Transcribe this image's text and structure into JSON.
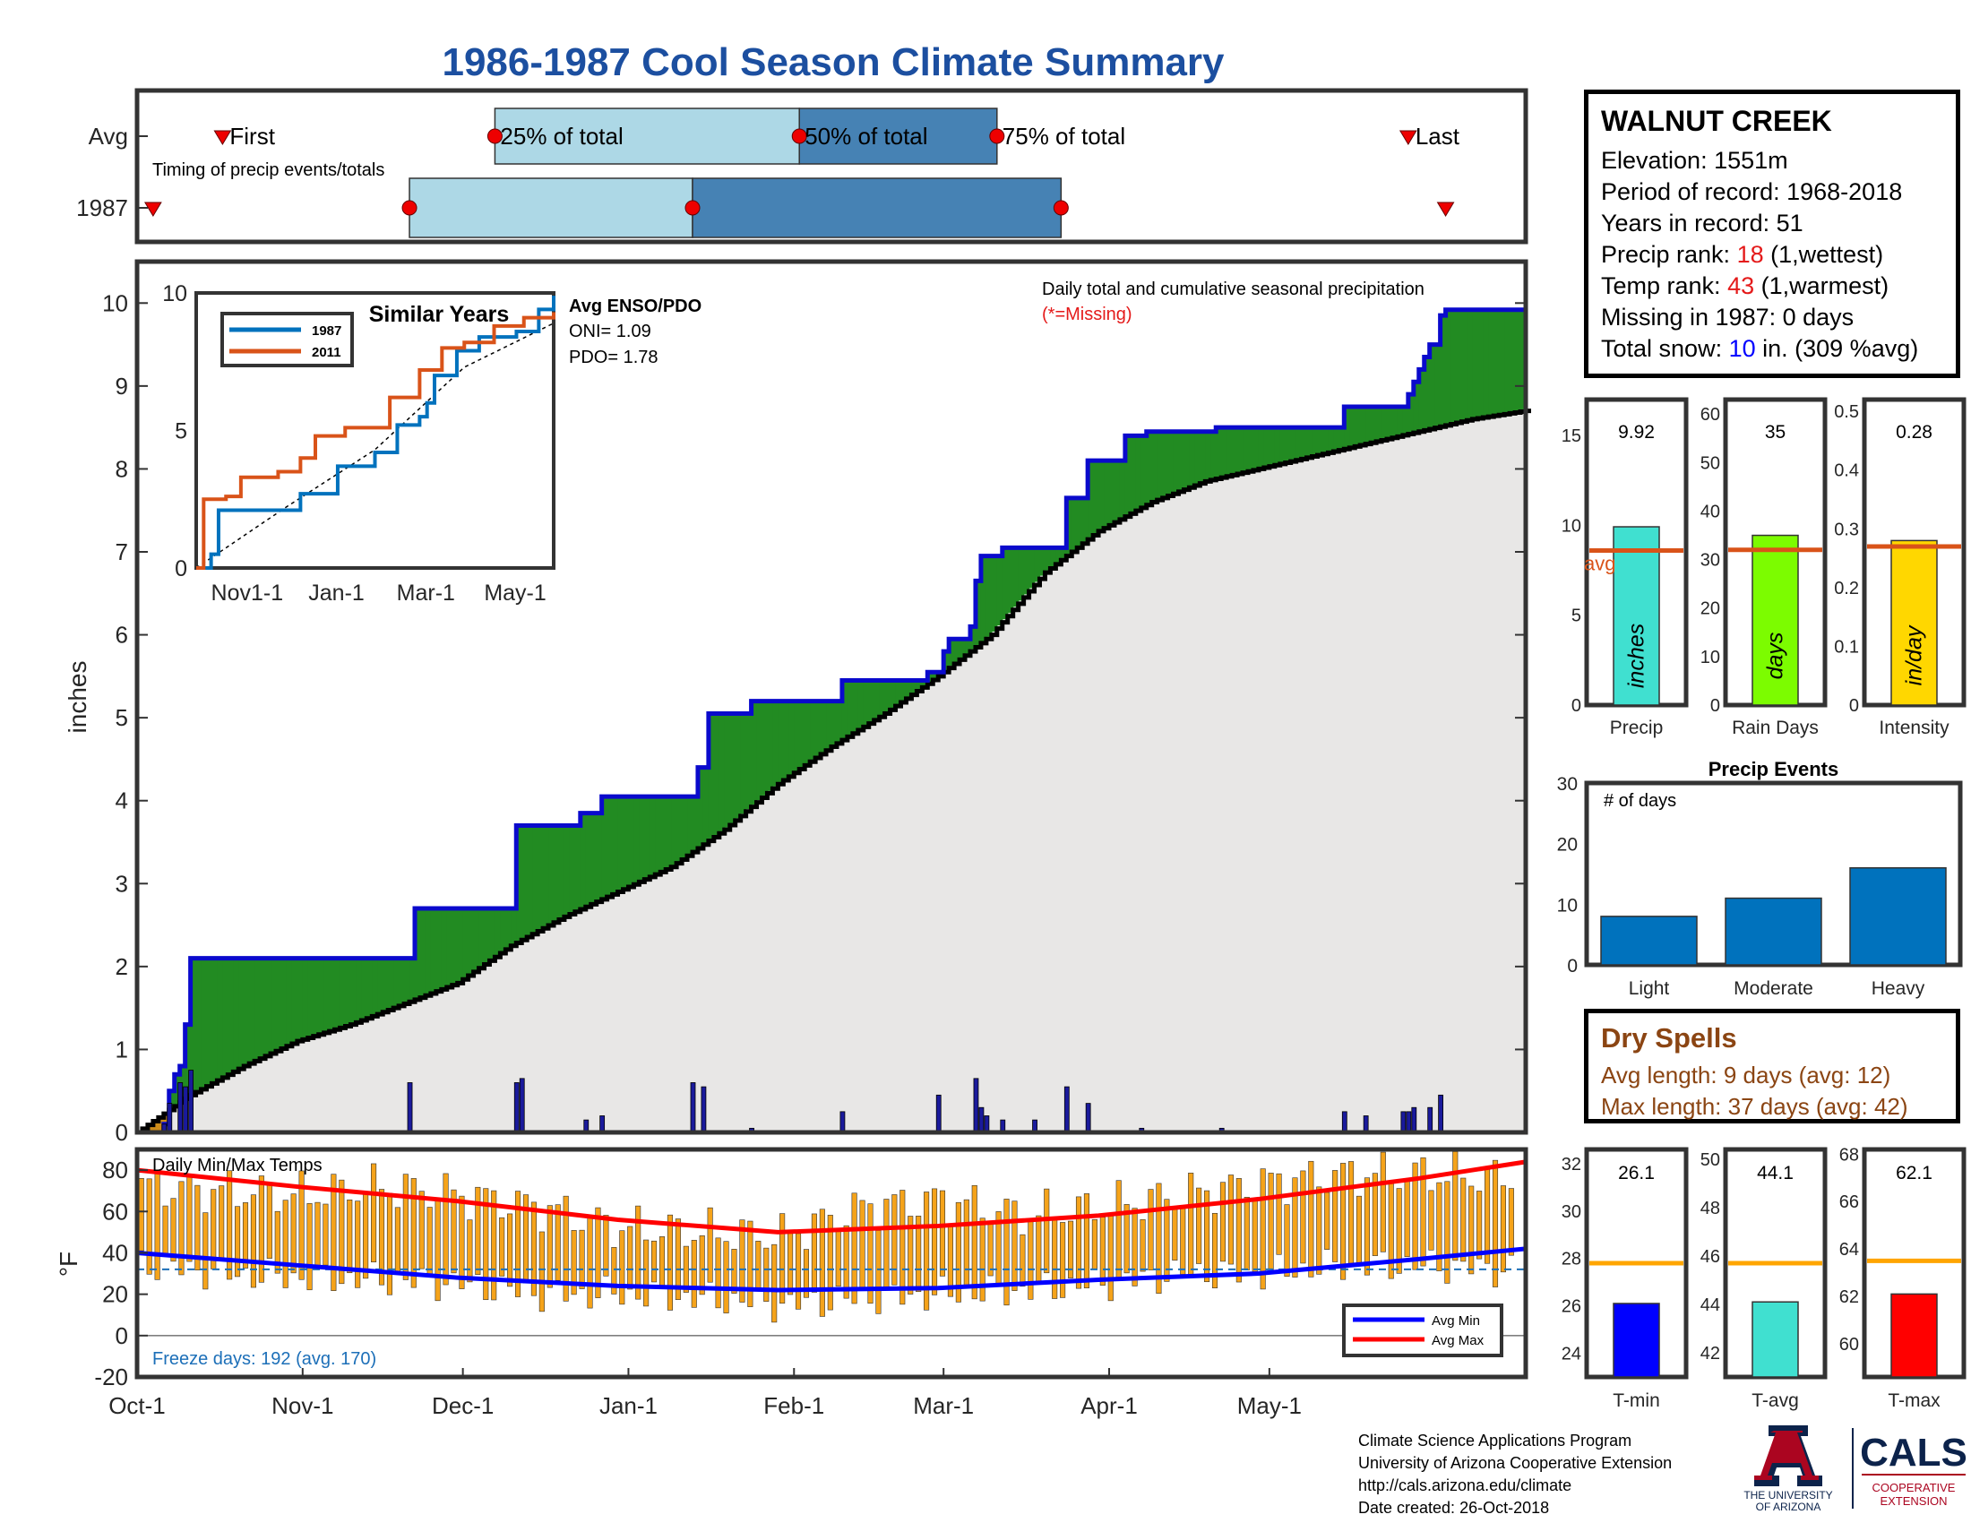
{
  "title": "1986-1987 Cool Season Climate Summary",
  "station": {
    "name": "WALNUT CREEK",
    "elevation": "Elevation: 1551m",
    "period": "Period of record: 1968-2018",
    "years": "Years in record: 51",
    "precip_rank_label": "Precip rank: ",
    "precip_rank": "18",
    "precip_rank_note": " (1,wettest)",
    "temp_rank_label": "Temp rank: ",
    "temp_rank": "43",
    "temp_rank_note": " (1,warmest)",
    "missing": "Missing in 1987: 0 days",
    "snow_label": "Total snow: ",
    "snow_value": "10",
    "snow_note": " in. (309 %avg)"
  },
  "dry_spells": {
    "title": "Dry Spells",
    "avg": "Avg length: 9 days (avg: 12)",
    "max": "Max length: 37 days (avg: 42)"
  },
  "credits": {
    "line1": "Climate Science Applications Program",
    "line2": "University of Arizona Cooperative Extension",
    "line3": "http://cals.arizona.edu/climate",
    "line4": " Date created: 26-Oct-2018"
  },
  "logos": {
    "ua_line1": "THE UNIVERSITY",
    "ua_line2": "OF ARIZONA",
    "cals": "CALS",
    "cals_sub1": "COOPERATIVE",
    "cals_sub2": "EXTENSION"
  },
  "colors": {
    "title": "#1c4fa0",
    "season_total": "#0a0acc",
    "above_avg": "#228b22",
    "below_avg": "#cd8c1a",
    "avg_fill": "#e8e7e6",
    "daily_bar": "#1a1a9c",
    "temp_bar": "#f5a31a",
    "avg_min": "#0000ff",
    "avg_max": "#ff0000",
    "box_light": "#add8e6",
    "box_dark": "#4682b4",
    "inset_1987": "#0072bd",
    "inset_2011": "#d95319"
  },
  "month_ticks": [
    "Oct-1",
    "Nov-1",
    "Dec-1",
    "Jan-1",
    "Feb-1",
    "Mar-1",
    "Apr-1",
    "May-1"
  ],
  "chart_data": [
    {
      "id": "timing",
      "type": "box",
      "title": "Timing of precip events/totals",
      "rows": [
        {
          "name": "Avg",
          "first_day": 16,
          "q25_day": 67,
          "q50_day": 124,
          "q75_day": 161,
          "last_day": 238
        },
        {
          "name": "1987",
          "first_day": 3,
          "q25_day": 51,
          "q50_day": 104,
          "q75_day": 173,
          "last_day": 245
        }
      ],
      "labels": {
        "first": "First",
        "q25": "25% of total",
        "q50": "50% of total",
        "q75": "75% of total",
        "last": "Last"
      }
    },
    {
      "id": "cumulative",
      "type": "area",
      "title": "Daily total and cumulative seasonal precipitation",
      "subtitle": "(*=Missing)",
      "ylabel": "inches",
      "ylim": [
        0,
        10.5
      ],
      "yticks": [
        0,
        1,
        2,
        3,
        4,
        5,
        6,
        7,
        8,
        9,
        10
      ],
      "xlim": [
        0,
        260
      ],
      "season_cumulative": [
        [
          0,
          0
        ],
        [
          5,
          0.1
        ],
        [
          6,
          0.5
        ],
        [
          7,
          0.7
        ],
        [
          8,
          0.8
        ],
        [
          9,
          1.3
        ],
        [
          10,
          2.1
        ],
        [
          51,
          2.1
        ],
        [
          52,
          2.7
        ],
        [
          70,
          2.7
        ],
        [
          71,
          3.7
        ],
        [
          82,
          3.7
        ],
        [
          83,
          3.85
        ],
        [
          86,
          3.85
        ],
        [
          87,
          4.05
        ],
        [
          104,
          4.05
        ],
        [
          105,
          4.4
        ],
        [
          106,
          4.4
        ],
        [
          107,
          5.05
        ],
        [
          114,
          5.05
        ],
        [
          115,
          5.2
        ],
        [
          131,
          5.2
        ],
        [
          132,
          5.45
        ],
        [
          147,
          5.45
        ],
        [
          148,
          5.55
        ],
        [
          150,
          5.55
        ],
        [
          151,
          5.8
        ],
        [
          152,
          5.95
        ],
        [
          155,
          5.95
        ],
        [
          156,
          6.1
        ],
        [
          157,
          6.65
        ],
        [
          158,
          6.95
        ],
        [
          161,
          6.95
        ],
        [
          162,
          7.05
        ],
        [
          173,
          7.05
        ],
        [
          174,
          7.65
        ],
        [
          177,
          7.65
        ],
        [
          178,
          8.1
        ],
        [
          184,
          8.1
        ],
        [
          185,
          8.4
        ],
        [
          188,
          8.4
        ],
        [
          189,
          8.45
        ],
        [
          201,
          8.45
        ],
        [
          202,
          8.5
        ],
        [
          225,
          8.5
        ],
        [
          226,
          8.75
        ],
        [
          237,
          8.75
        ],
        [
          238,
          8.9
        ],
        [
          239,
          9.05
        ],
        [
          240,
          9.2
        ],
        [
          241,
          9.35
        ],
        [
          242,
          9.5
        ],
        [
          243,
          9.5
        ],
        [
          244,
          9.85
        ],
        [
          245,
          9.92
        ],
        [
          260,
          9.92
        ]
      ],
      "avg_cumulative": [
        [
          0,
          0
        ],
        [
          10,
          0.45
        ],
        [
          20,
          0.8
        ],
        [
          30,
          1.1
        ],
        [
          40,
          1.3
        ],
        [
          50,
          1.55
        ],
        [
          60,
          1.8
        ],
        [
          70,
          2.25
        ],
        [
          80,
          2.6
        ],
        [
          90,
          2.9
        ],
        [
          100,
          3.2
        ],
        [
          110,
          3.65
        ],
        [
          120,
          4.2
        ],
        [
          130,
          4.65
        ],
        [
          140,
          5.05
        ],
        [
          150,
          5.5
        ],
        [
          160,
          6.0
        ],
        [
          170,
          6.75
        ],
        [
          180,
          7.25
        ],
        [
          190,
          7.6
        ],
        [
          200,
          7.85
        ],
        [
          210,
          8.0
        ],
        [
          220,
          8.15
        ],
        [
          230,
          8.3
        ],
        [
          240,
          8.45
        ],
        [
          250,
          8.6
        ],
        [
          260,
          8.7
        ]
      ],
      "daily_precip": [
        [
          5,
          0.1
        ],
        [
          6,
          0.35
        ],
        [
          8,
          0.6
        ],
        [
          9,
          0.55
        ],
        [
          10,
          0.75
        ],
        [
          51,
          0.6
        ],
        [
          71,
          0.6
        ],
        [
          72,
          0.65
        ],
        [
          84,
          0.15
        ],
        [
          87,
          0.2
        ],
        [
          104,
          0.6
        ],
        [
          106,
          0.55
        ],
        [
          115,
          0.05
        ],
        [
          132,
          0.25
        ],
        [
          150,
          0.45
        ],
        [
          157,
          0.65
        ],
        [
          158,
          0.3
        ],
        [
          159,
          0.2
        ],
        [
          162,
          0.15
        ],
        [
          168,
          0.15
        ],
        [
          174,
          0.55
        ],
        [
          178,
          0.35
        ],
        [
          188,
          0.05
        ],
        [
          203,
          0.05
        ],
        [
          226,
          0.25
        ],
        [
          230,
          0.2
        ],
        [
          237,
          0.25
        ],
        [
          238,
          0.25
        ],
        [
          239,
          0.3
        ],
        [
          242,
          0.3
        ],
        [
          244,
          0.45
        ]
      ]
    },
    {
      "id": "similar_years",
      "type": "line",
      "title": "Similar Years",
      "xlim": [
        0,
        240
      ],
      "ylim": [
        0,
        10
      ],
      "yticks": [
        0,
        5,
        10
      ],
      "xticks": [
        "Nov1-1",
        "Jan-1",
        "Mar-1",
        "May-1"
      ],
      "series": [
        {
          "name": "1987",
          "values": [
            [
              0,
              0
            ],
            [
              10,
              0.5
            ],
            [
              15,
              2.1
            ],
            [
              60,
              2.1
            ],
            [
              70,
              2.7
            ],
            [
              95,
              3.7
            ],
            [
              120,
              4.2
            ],
            [
              135,
              5.2
            ],
            [
              150,
              5.5
            ],
            [
              155,
              6.0
            ],
            [
              160,
              7.0
            ],
            [
              175,
              7.9
            ],
            [
              190,
              8.4
            ],
            [
              215,
              8.6
            ],
            [
              230,
              9.4
            ],
            [
              240,
              9.9
            ]
          ]
        },
        {
          "name": "2011",
          "values": [
            [
              0,
              0
            ],
            [
              5,
              2.5
            ],
            [
              20,
              2.6
            ],
            [
              30,
              3.3
            ],
            [
              55,
              3.5
            ],
            [
              70,
              4.0
            ],
            [
              80,
              4.8
            ],
            [
              100,
              5.1
            ],
            [
              130,
              6.2
            ],
            [
              150,
              7.2
            ],
            [
              165,
              8.0
            ],
            [
              180,
              8.2
            ],
            [
              200,
              8.8
            ],
            [
              220,
              9.1
            ],
            [
              240,
              9.3
            ]
          ]
        }
      ],
      "avg_line": [
        [
          0,
          0
        ],
        [
          60,
          2.2
        ],
        [
          120,
          4.3
        ],
        [
          180,
          7.3
        ],
        [
          240,
          8.9
        ]
      ]
    },
    {
      "id": "enso",
      "type": "table",
      "title": "Avg ENSO/PDO",
      "rows": [
        "ONI= 1.09",
        "PDO= 1.78"
      ]
    },
    {
      "id": "summary_bars",
      "type": "bar",
      "panels": [
        {
          "name": "Precip",
          "unit": "inches",
          "value": 9.92,
          "label": "9.92",
          "avg": 8.6,
          "avg_label": "avg",
          "ylim": [
            0,
            17
          ],
          "yticks": [
            0,
            5,
            10,
            15
          ]
        },
        {
          "name": "Rain Days",
          "unit": "days",
          "value": 35,
          "label": "35",
          "avg": 32,
          "ylim": [
            0,
            63
          ],
          "yticks": [
            0,
            10,
            20,
            30,
            40,
            50,
            60
          ]
        },
        {
          "name": "Intensity",
          "unit": "in/day",
          "value": 0.28,
          "label": "0.28",
          "avg": 0.27,
          "ylim": [
            0,
            0.52
          ],
          "yticks": [
            0,
            0.1,
            0.2,
            0.3,
            0.4,
            0.5
          ]
        }
      ]
    },
    {
      "id": "precip_events",
      "type": "bar",
      "title": "Precip Events",
      "ylabel": "# of days",
      "categories": [
        "Light",
        "Moderate",
        "Heavy"
      ],
      "values": [
        8,
        11,
        16
      ],
      "ylim": [
        0,
        30
      ],
      "yticks": [
        0,
        10,
        20,
        30
      ]
    },
    {
      "id": "temps",
      "type": "bar",
      "title": "Daily Min/Max Temps",
      "ylabel": "°F",
      "ylim": [
        -20,
        90
      ],
      "yticks": [
        -20,
        0,
        20,
        40,
        60,
        80
      ],
      "freeze_line": 32,
      "freeze_text": "Freeze days: 192 (avg. 170)",
      "legend": [
        "Avg Min",
        "Avg Max"
      ],
      "avg_max": [
        [
          0,
          80
        ],
        [
          30,
          72
        ],
        [
          60,
          65
        ],
        [
          90,
          56
        ],
        [
          120,
          50
        ],
        [
          150,
          53
        ],
        [
          180,
          58
        ],
        [
          210,
          66
        ],
        [
          240,
          76
        ],
        [
          260,
          84
        ]
      ],
      "avg_min": [
        [
          0,
          40
        ],
        [
          30,
          34
        ],
        [
          60,
          28
        ],
        [
          90,
          24
        ],
        [
          120,
          22
        ],
        [
          150,
          23
        ],
        [
          180,
          27
        ],
        [
          210,
          30
        ],
        [
          240,
          37
        ],
        [
          260,
          42
        ]
      ],
      "daily_max": [
        [
          0,
          72
        ],
        [
          15,
          70
        ],
        [
          30,
          68
        ],
        [
          45,
          72
        ],
        [
          60,
          68
        ],
        [
          75,
          62
        ],
        [
          90,
          52
        ],
        [
          105,
          50
        ],
        [
          120,
          48
        ],
        [
          135,
          62
        ],
        [
          150,
          66
        ],
        [
          165,
          58
        ],
        [
          180,
          62
        ],
        [
          195,
          68
        ],
        [
          210,
          74
        ],
        [
          225,
          78
        ],
        [
          240,
          78
        ],
        [
          255,
          76
        ]
      ],
      "daily_min": [
        [
          0,
          35
        ],
        [
          15,
          30
        ],
        [
          30,
          28
        ],
        [
          45,
          27
        ],
        [
          60,
          25
        ],
        [
          75,
          20
        ],
        [
          90,
          20
        ],
        [
          105,
          18
        ],
        [
          120,
          15
        ],
        [
          135,
          18
        ],
        [
          150,
          20
        ],
        [
          165,
          22
        ],
        [
          180,
          25
        ],
        [
          195,
          30
        ],
        [
          210,
          30
        ],
        [
          225,
          34
        ],
        [
          240,
          34
        ],
        [
          255,
          32
        ]
      ]
    },
    {
      "id": "temp_summary",
      "type": "bar",
      "panels": [
        {
          "name": "T-min",
          "value": 26.1,
          "label": "26.1",
          "avg": 27.8,
          "ylim": [
            23,
            32.6
          ],
          "yticks": [
            24,
            26,
            28,
            30,
            32
          ],
          "color": "#0000ff"
        },
        {
          "name": "T-avg",
          "value": 44.1,
          "label": "44.1",
          "avg": 45.7,
          "ylim": [
            41,
            50.4
          ],
          "yticks": [
            42,
            44,
            46,
            48,
            50
          ],
          "color": "#40e0d0"
        },
        {
          "name": "T-max",
          "value": 62.1,
          "label": "62.1",
          "avg": 63.5,
          "ylim": [
            58.6,
            68.2
          ],
          "yticks": [
            60,
            62,
            64,
            66,
            68
          ],
          "color": "#ff0000"
        }
      ]
    }
  ]
}
